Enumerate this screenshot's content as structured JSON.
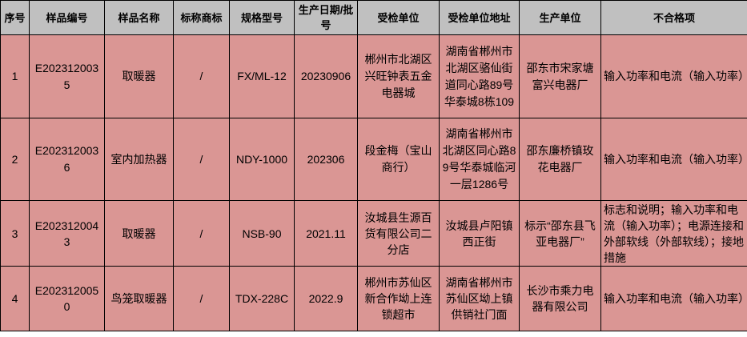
{
  "headers": [
    "序号",
    "样品编号",
    "样品名称",
    "标称商标",
    "规格型号",
    "生产日期/批号",
    "受检单位",
    "受检单位地址",
    "生产单位",
    "不合格项"
  ],
  "rows": [
    [
      "1",
      "E2023120035",
      "取暖器",
      "/",
      "FX/ML-12",
      "20230906",
      "郴州市北湖区兴旺钟表五金电器城",
      "湖南省郴州市北湖区骆仙街道同心路89号华泰城8栋109",
      "邵东市宋家塘富兴电器厂",
      "输入功率和电流（输入功率）"
    ],
    [
      "2",
      "E2023120036",
      "室内加热器",
      "/",
      "NDY-1000",
      "202306",
      "段金梅（宝山商行）",
      "湖南省郴州市北湖区同心路89号华泰城临河一层1286号",
      "邵东廉桥镇玫花电器厂",
      "输入功率和电流（输入功率）"
    ],
    [
      "3",
      "E2023120043",
      "取暖器",
      "/",
      "NSB-90",
      "2021.11",
      "汝城县生源百货有限公司二分店",
      "汝城县卢阳镇西正街",
      "标示“邵东县飞亚电器厂”",
      "标志和说明；输入功率和电流（输入功率）；电源连接和外部软线（外部软线）；接地措施"
    ],
    [
      "4",
      "E2023120050",
      "鸟笼取暖器",
      "/",
      "TDX-228C",
      "2022.9",
      "郴州市苏仙区新合作坳上连锁超市",
      "湖南省郴州市苏仙区坳上镇供销社门面",
      "长沙市乘力电器有限公司",
      "输入功率和电流（输入功率）"
    ]
  ]
}
